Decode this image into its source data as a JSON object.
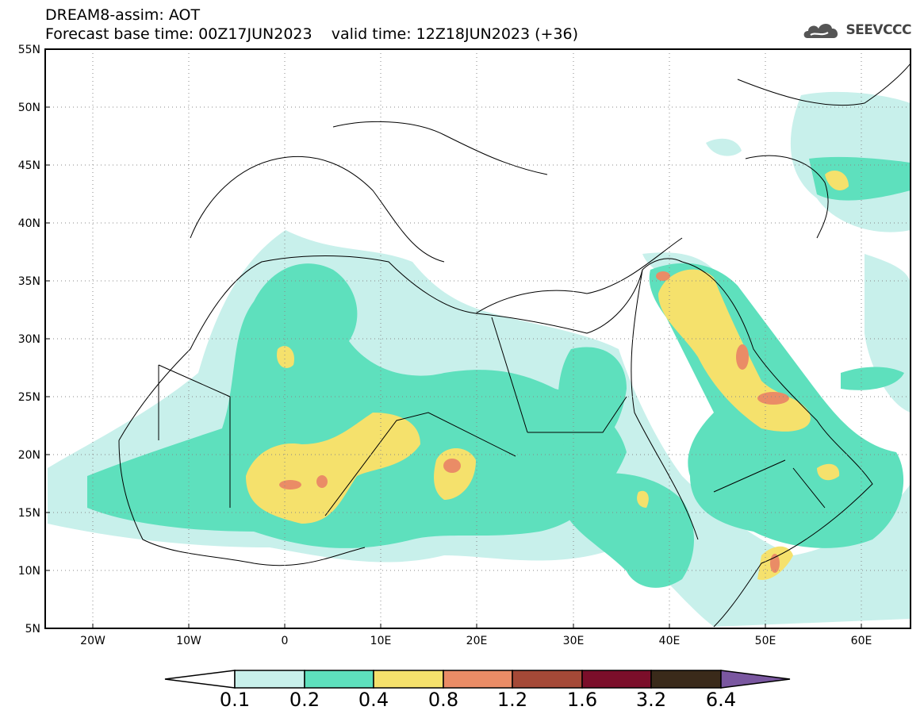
{
  "header": {
    "title_line1": "DREAM8-assim: AOT",
    "title_line2": "Forecast base time: 00Z17JUN2023    valid time: 12Z18JUN2023 (+36)"
  },
  "logo": {
    "text": "SEEVCCC",
    "icon": "cloud-icon"
  },
  "map": {
    "lon_range": [
      -25,
      65
    ],
    "lat_range": [
      5,
      55
    ],
    "grid": "dotted",
    "lon_ticks": [
      "20W",
      "10W",
      "0",
      "10E",
      "20E",
      "30E",
      "40E",
      "50E",
      "60E"
    ],
    "lat_ticks": [
      "55N",
      "50N",
      "45N",
      "40N",
      "35N",
      "30N",
      "25N",
      "20N",
      "15N",
      "10N",
      "5N"
    ]
  },
  "colorbar": {
    "labels": [
      "0.1",
      "0.2",
      "0.4",
      "0.8",
      "1.2",
      "1.6",
      "3.2",
      "6.4"
    ],
    "colors": [
      "#ffffff",
      "#c8f0eb",
      "#5ee0bd",
      "#f5e16c",
      "#ea8c66",
      "#a54937",
      "#7b0e2a",
      "#3a2a1a",
      "#7a57a0"
    ]
  }
}
